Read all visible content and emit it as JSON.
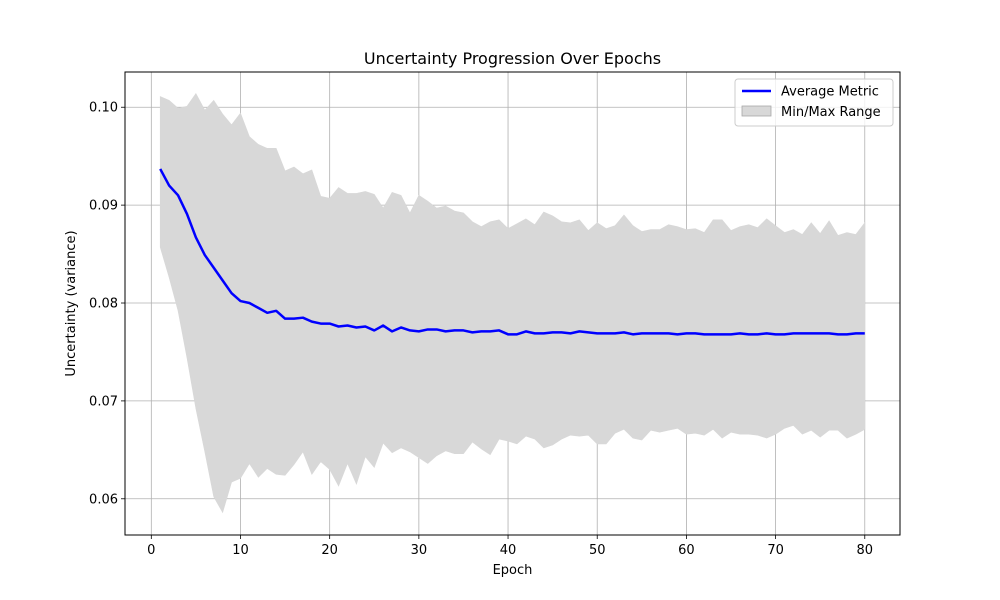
{
  "chart_data": {
    "type": "line",
    "title": "Uncertainty Progression Over Epochs",
    "xlabel": "Epoch",
    "ylabel": "Uncertainty (variance)",
    "xlim": [
      -2.95,
      83.95
    ],
    "ylim": [
      0.0563,
      0.1036
    ],
    "xticks": [
      0,
      10,
      20,
      30,
      40,
      50,
      60,
      70,
      80
    ],
    "xtick_labels": [
      "0",
      "10",
      "20",
      "30",
      "40",
      "50",
      "60",
      "70",
      "80"
    ],
    "yticks": [
      0.06,
      0.07,
      0.08,
      0.09,
      0.1
    ],
    "ytick_labels": [
      "0.06",
      "0.07",
      "0.08",
      "0.09",
      "0.10"
    ],
    "grid": true,
    "legend_position": "top-right",
    "x": [
      1,
      2,
      3,
      4,
      5,
      6,
      7,
      8,
      9,
      10,
      11,
      12,
      13,
      14,
      15,
      16,
      17,
      18,
      19,
      20,
      21,
      22,
      23,
      24,
      25,
      26,
      27,
      28,
      29,
      30,
      31,
      32,
      33,
      34,
      35,
      36,
      37,
      38,
      39,
      40,
      41,
      42,
      43,
      44,
      45,
      46,
      47,
      48,
      49,
      50,
      51,
      52,
      53,
      54,
      55,
      56,
      57,
      58,
      59,
      60,
      61,
      62,
      63,
      64,
      65,
      66,
      67,
      68,
      69,
      70,
      71,
      72,
      73,
      74,
      75,
      76,
      77,
      78,
      79,
      80
    ],
    "series": [
      {
        "name": "Average Metric",
        "color": "#0000ff",
        "values": [
          0.0937,
          0.092,
          0.091,
          0.0891,
          0.0867,
          0.0849,
          0.0836,
          0.0823,
          0.081,
          0.0802,
          0.08,
          0.0795,
          0.079,
          0.0792,
          0.0784,
          0.0784,
          0.0785,
          0.0781,
          0.0779,
          0.0779,
          0.0776,
          0.0777,
          0.0775,
          0.0776,
          0.0772,
          0.0777,
          0.0771,
          0.0775,
          0.0772,
          0.0771,
          0.0773,
          0.0773,
          0.0771,
          0.0772,
          0.0772,
          0.077,
          0.0771,
          0.0771,
          0.0772,
          0.0768,
          0.0768,
          0.0771,
          0.0769,
          0.0769,
          0.077,
          0.077,
          0.0769,
          0.0771,
          0.077,
          0.0769,
          0.0769,
          0.0769,
          0.077,
          0.0768,
          0.0769,
          0.0769,
          0.0769,
          0.0769,
          0.0768,
          0.0769,
          0.0769,
          0.0768,
          0.0768,
          0.0768,
          0.0768,
          0.0769,
          0.0768,
          0.0768,
          0.0769,
          0.0768,
          0.0768,
          0.0769,
          0.0769,
          0.0769,
          0.0769,
          0.0769,
          0.0768,
          0.0768,
          0.0769,
          0.0769
        ]
      },
      {
        "name": "Min/Max Range",
        "type": "area",
        "color": "#d8d8d8",
        "min": [
          0.0857,
          0.0826,
          0.0792,
          0.0744,
          0.0692,
          0.0648,
          0.0602,
          0.0586,
          0.0617,
          0.0621,
          0.0636,
          0.0622,
          0.0631,
          0.0625,
          0.0624,
          0.0635,
          0.0648,
          0.0625,
          0.0638,
          0.063,
          0.0613,
          0.0636,
          0.0615,
          0.0643,
          0.0632,
          0.0657,
          0.0647,
          0.0652,
          0.0648,
          0.0642,
          0.0636,
          0.0644,
          0.0649,
          0.0646,
          0.0646,
          0.0658,
          0.0651,
          0.0645,
          0.0661,
          0.0659,
          0.0656,
          0.0664,
          0.0661,
          0.0652,
          0.0655,
          0.0661,
          0.0665,
          0.0664,
          0.0665,
          0.0656,
          0.0656,
          0.0667,
          0.0671,
          0.0662,
          0.066,
          0.067,
          0.0668,
          0.067,
          0.0672,
          0.0666,
          0.0667,
          0.0665,
          0.0671,
          0.0662,
          0.0668,
          0.0666,
          0.0666,
          0.0665,
          0.0662,
          0.0666,
          0.0672,
          0.0675,
          0.0666,
          0.067,
          0.0663,
          0.067,
          0.067,
          0.0662,
          0.0666,
          0.0671
        ],
        "max": [
          0.1011,
          0.1007,
          0.0999,
          0.1001,
          0.1014,
          0.0997,
          0.1007,
          0.0993,
          0.0982,
          0.0994,
          0.097,
          0.0962,
          0.0958,
          0.0958,
          0.0935,
          0.0939,
          0.0932,
          0.0936,
          0.0909,
          0.0907,
          0.0918,
          0.0912,
          0.0912,
          0.0914,
          0.0911,
          0.0897,
          0.0913,
          0.091,
          0.0892,
          0.091,
          0.0904,
          0.0897,
          0.0899,
          0.0894,
          0.0892,
          0.0883,
          0.0878,
          0.0883,
          0.0885,
          0.0876,
          0.0881,
          0.0886,
          0.088,
          0.0893,
          0.0889,
          0.0883,
          0.0882,
          0.0885,
          0.0874,
          0.0882,
          0.0876,
          0.0879,
          0.089,
          0.0879,
          0.0873,
          0.0875,
          0.0875,
          0.088,
          0.0878,
          0.0875,
          0.0876,
          0.0872,
          0.0885,
          0.0885,
          0.0874,
          0.0878,
          0.088,
          0.0877,
          0.0886,
          0.0879,
          0.0872,
          0.0875,
          0.087,
          0.0882,
          0.0871,
          0.0884,
          0.0869,
          0.0872,
          0.087,
          0.0882
        ]
      }
    ]
  }
}
